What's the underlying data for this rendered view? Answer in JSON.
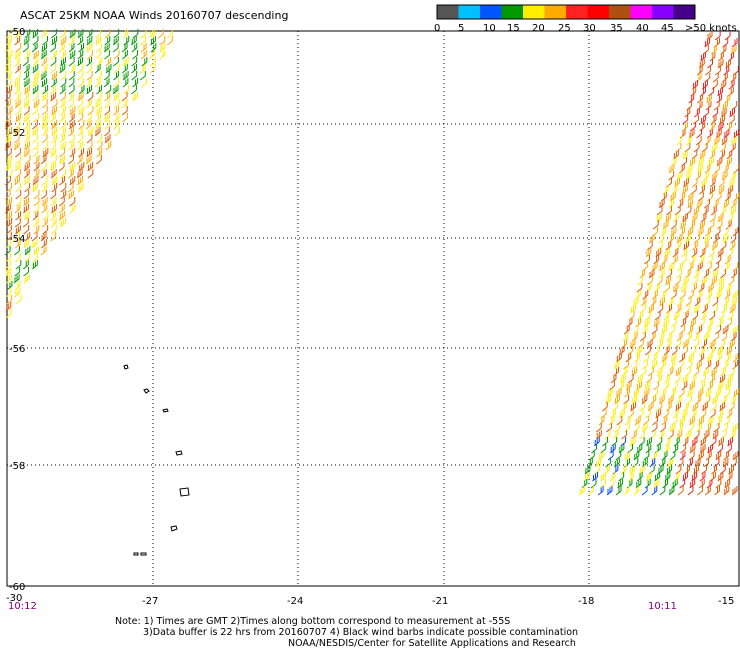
{
  "title": "ASCAT 25KM NOAA Winds 20160707 descending",
  "legend": {
    "colors": [
      "#555555",
      "#00c0ff",
      "#0055ff",
      "#009900",
      "#ffee00",
      "#ffaa00",
      "#ff2222",
      "#ff0000",
      "#b05010",
      "#ff00ff",
      "#8800ff",
      "#440088"
    ],
    "labels": [
      "0",
      "5",
      "10",
      "15",
      "20",
      "25",
      "30",
      "35",
      "40",
      "45",
      ">50 knots"
    ]
  },
  "axes": {
    "lat_labels": [
      "-50",
      "-52",
      "-54",
      "-56",
      "-58",
      "-60"
    ],
    "lon_labels": [
      "-30",
      "-27",
      "-24",
      "-21",
      "-18",
      "-15"
    ]
  },
  "times": {
    "left": "10:12",
    "right": "10:11"
  },
  "notes": {
    "line1": "Note: 1) Times are GMT 2)Times along bottom correspond to measurement at -55S",
    "line2": "3)Data buffer is 22 hrs from 20160707 4) Black wind barbs indicate possible contamination",
    "line3": "NOAA/NESDIS/Center for Satellite Applications and Research"
  },
  "colors": {
    "green": "#009900",
    "yellow": "#ffee00",
    "orange": "#ffaa00",
    "darkorange": "#e05a00",
    "red": "#ee2222",
    "blue": "#0044ff"
  }
}
